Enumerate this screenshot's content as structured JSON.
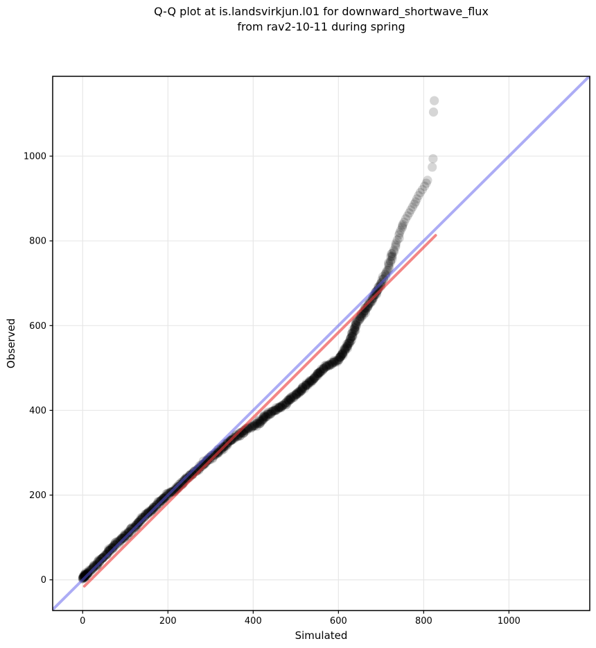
{
  "chart_data": {
    "type": "scatter",
    "title_line1": "Q-Q plot at is.landsvirkjun.l01 for downward_shortwave_flux",
    "title_line2": "from rav2-10-11 during spring",
    "xlabel": "Simulated",
    "ylabel": "Observed",
    "xlim": [
      -70.4,
      1189.6
    ],
    "ylim": [
      -72.5,
      1188.4
    ],
    "x_ticks": [
      0,
      200,
      400,
      600,
      800,
      1000
    ],
    "y_ticks": [
      0,
      200,
      400,
      600,
      800,
      1000
    ],
    "grid": true,
    "grid_color": "#e7e7e7",
    "spine_color": "#000000",
    "identity_line": {
      "from": [
        -70.4,
        -70.4
      ],
      "to": [
        1189.6,
        1189.6
      ],
      "color": "#5a5aeb",
      "opacity": 0.5,
      "width": 4
    },
    "fit_line": {
      "from": [
        4,
        -15
      ],
      "to": [
        828,
        813
      ],
      "color": "#eb3c3c",
      "opacity": 0.62,
      "width": 4
    },
    "point_style": {
      "color": "#000000",
      "opacity": 0.16,
      "radius": 6.6
    },
    "origin_cluster": [
      [
        0,
        3
      ],
      [
        1,
        5
      ],
      [
        2,
        7
      ],
      [
        3,
        9
      ],
      [
        4,
        6
      ],
      [
        5,
        10
      ],
      [
        6,
        8
      ],
      [
        7,
        12
      ],
      [
        2,
        4
      ],
      [
        3,
        6
      ],
      [
        1,
        8
      ],
      [
        5,
        5
      ],
      [
        8,
        10
      ],
      [
        10,
        13
      ],
      [
        12,
        15
      ],
      [
        6,
        11
      ],
      [
        9,
        9
      ],
      [
        4,
        12
      ],
      [
        11,
        14
      ],
      [
        13,
        16
      ]
    ],
    "points": [
      [
        0,
        2
      ],
      [
        2,
        6
      ],
      [
        4,
        9
      ],
      [
        6,
        12
      ],
      [
        9,
        14
      ],
      [
        12,
        17
      ],
      [
        16,
        21
      ],
      [
        20,
        25
      ],
      [
        25,
        30
      ],
      [
        30,
        34
      ],
      [
        35,
        39
      ],
      [
        40,
        44
      ],
      [
        46,
        50
      ],
      [
        52,
        57
      ],
      [
        58,
        63
      ],
      [
        64,
        70
      ],
      [
        70,
        77
      ],
      [
        76,
        83
      ],
      [
        82,
        88
      ],
      [
        88,
        93
      ],
      [
        94,
        98
      ],
      [
        100,
        104
      ],
      [
        108,
        112
      ],
      [
        116,
        120
      ],
      [
        124,
        128
      ],
      [
        132,
        136
      ],
      [
        140,
        145
      ],
      [
        148,
        153
      ],
      [
        156,
        160
      ],
      [
        164,
        168
      ],
      [
        172,
        176
      ],
      [
        180,
        184
      ],
      [
        188,
        191
      ],
      [
        196,
        198
      ],
      [
        204,
        204
      ],
      [
        212,
        209
      ],
      [
        220,
        215
      ],
      [
        228,
        222
      ],
      [
        236,
        231
      ],
      [
        244,
        239
      ],
      [
        252,
        246
      ],
      [
        260,
        253
      ],
      [
        268,
        259
      ],
      [
        276,
        266
      ],
      [
        284,
        274
      ],
      [
        292,
        282
      ],
      [
        300,
        289
      ],
      [
        308,
        294
      ],
      [
        316,
        300
      ],
      [
        324,
        307
      ],
      [
        332,
        315
      ],
      [
        340,
        323
      ],
      [
        348,
        329
      ],
      [
        356,
        335
      ],
      [
        364,
        340
      ],
      [
        372,
        346
      ],
      [
        380,
        352
      ],
      [
        388,
        356
      ],
      [
        396,
        360
      ],
      [
        404,
        364
      ],
      [
        412,
        370
      ],
      [
        420,
        377
      ],
      [
        428,
        384
      ],
      [
        436,
        391
      ],
      [
        444,
        396
      ],
      [
        452,
        400
      ],
      [
        460,
        405
      ],
      [
        468,
        411
      ],
      [
        476,
        418
      ],
      [
        484,
        424
      ],
      [
        492,
        430
      ],
      [
        500,
        437
      ],
      [
        508,
        444
      ],
      [
        516,
        451
      ],
      [
        524,
        459
      ],
      [
        532,
        466
      ],
      [
        540,
        472
      ],
      [
        548,
        481
      ],
      [
        556,
        490
      ],
      [
        564,
        498
      ],
      [
        572,
        504
      ],
      [
        580,
        509
      ],
      [
        588,
        513
      ],
      [
        596,
        517
      ],
      [
        604,
        525
      ],
      [
        610,
        533
      ],
      [
        616,
        543
      ],
      [
        621,
        553
      ],
      [
        626,
        564
      ],
      [
        630,
        574
      ],
      [
        634,
        584
      ],
      [
        638,
        594
      ],
      [
        642,
        602
      ],
      [
        646,
        610
      ],
      [
        650,
        617
      ],
      [
        654,
        623
      ],
      [
        658,
        629
      ],
      [
        662,
        635
      ],
      [
        666,
        641
      ],
      [
        670,
        647
      ],
      [
        674,
        653
      ],
      [
        678,
        659
      ],
      [
        682,
        666
      ],
      [
        686,
        673
      ],
      [
        690,
        681
      ],
      [
        694,
        689
      ],
      [
        698,
        696
      ],
      [
        702,
        703
      ],
      [
        706,
        711
      ],
      [
        710,
        720
      ],
      [
        714,
        730
      ],
      [
        718,
        741
      ],
      [
        722,
        753
      ],
      [
        726,
        765
      ],
      [
        730,
        778
      ],
      [
        734,
        790
      ],
      [
        738,
        802
      ],
      [
        742,
        814
      ],
      [
        746,
        825
      ],
      [
        750,
        835
      ],
      [
        754,
        844
      ],
      [
        758,
        852
      ],
      [
        762,
        859
      ],
      [
        766,
        866
      ],
      [
        770,
        873
      ],
      [
        774,
        880
      ],
      [
        778,
        887
      ],
      [
        781,
        892
      ]
    ],
    "tail_points": [
      [
        784,
        899
      ],
      [
        788,
        907
      ],
      [
        792,
        914
      ],
      [
        797,
        921
      ],
      [
        802,
        929
      ],
      [
        806,
        936
      ],
      [
        809,
        943
      ],
      [
        820,
        974
      ],
      [
        822,
        994
      ],
      [
        823,
        1104
      ],
      [
        825,
        1131
      ]
    ],
    "densify": [
      {
        "below_y": 560,
        "spacing": 1.4
      },
      {
        "below_y": 700,
        "spacing": 1.9
      },
      {
        "below_y": 775,
        "spacing": 3.4
      },
      {
        "below_y": 99999,
        "spacing": 6
      }
    ]
  }
}
